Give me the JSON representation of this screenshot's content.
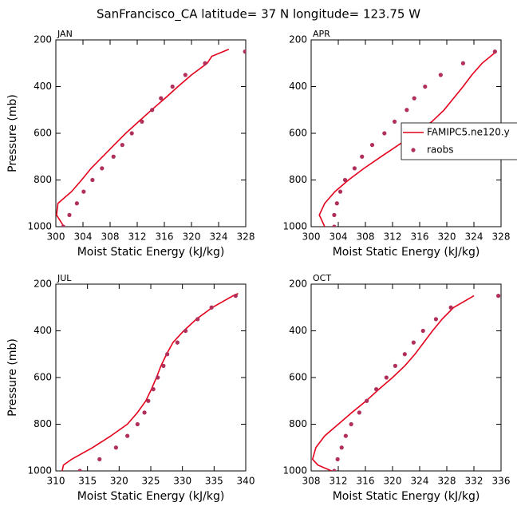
{
  "title": "SanFrancisco_CA  latitude= 37 N longitude= 123.75 W",
  "chart_data": [
    {
      "type": "line",
      "label": "JAN",
      "xlabel": "Moist Static Energy (kJ/kg)",
      "ylabel": "Pressure (mb)",
      "xlim": [
        300,
        328
      ],
      "xticks": [
        300,
        304,
        308,
        312,
        316,
        320,
        324,
        328
      ],
      "ylim": [
        1000,
        200
      ],
      "yticks": [
        200,
        400,
        600,
        800,
        1000
      ],
      "series": [
        {
          "style": "line",
          "color": "#e3001b",
          "x": [
            301.2,
            300.1,
            300.3,
            302.3,
            303.8,
            305.2,
            306.9,
            308.6,
            310.3,
            312.2,
            314.1,
            316.1,
            318.0,
            320.0,
            322.3,
            323.0,
            325.5
          ],
          "y": [
            1000,
            950,
            900,
            850,
            800,
            750,
            700,
            650,
            600,
            550,
            500,
            450,
            400,
            350,
            300,
            270,
            240
          ]
        },
        {
          "style": "markers",
          "color": "#b0305a",
          "x": [
            301.1,
            302.0,
            303.1,
            304.1,
            305.4,
            306.8,
            308.5,
            309.8,
            311.2,
            312.7,
            314.2,
            315.5,
            317.2,
            319.1,
            322.0,
            327.9
          ],
          "y": [
            1000,
            950,
            900,
            850,
            800,
            750,
            700,
            650,
            600,
            550,
            500,
            450,
            400,
            350,
            300,
            250
          ]
        }
      ]
    },
    {
      "type": "line",
      "label": "APR",
      "xlabel": "Moist Static Energy (kJ/kg)",
      "legend": "right",
      "xlim": [
        300,
        328
      ],
      "xticks": [
        300,
        304,
        308,
        312,
        316,
        320,
        324,
        328
      ],
      "ylim": [
        1000,
        200
      ],
      "yticks": [
        200,
        400,
        600,
        800,
        1000
      ],
      "series": [
        {
          "name": "FAMIPC5.ne120.y",
          "style": "line",
          "color": "#e3001b",
          "x": [
            302.0,
            301.2,
            302.0,
            303.5,
            305.5,
            307.8,
            310.3,
            312.9,
            315.4,
            317.8,
            319.6,
            321.0,
            322.4,
            323.7,
            325.2,
            327.3
          ],
          "y": [
            1000,
            950,
            900,
            850,
            800,
            750,
            700,
            650,
            600,
            550,
            500,
            450,
            400,
            350,
            300,
            250
          ]
        },
        {
          "name": "raobs",
          "style": "markers",
          "color": "#b0305a",
          "x": [
            303.4,
            303.4,
            303.8,
            304.3,
            305.0,
            306.4,
            307.5,
            309.0,
            310.8,
            312.3,
            314.1,
            315.2,
            316.8,
            319.1,
            322.4,
            327.1
          ],
          "y": [
            1000,
            950,
            900,
            850,
            800,
            750,
            700,
            650,
            600,
            550,
            500,
            450,
            400,
            350,
            300,
            250
          ]
        }
      ]
    },
    {
      "type": "line",
      "label": "JUL",
      "xlabel": "Moist Static Energy (kJ/kg)",
      "ylabel": "Pressure (mb)",
      "xlim": [
        310,
        340
      ],
      "xticks": [
        310,
        315,
        320,
        325,
        330,
        335,
        340
      ],
      "ylim": [
        1000,
        200
      ],
      "yticks": [
        200,
        400,
        600,
        800,
        1000
      ],
      "series": [
        {
          "style": "line",
          "color": "#e3001b",
          "x": [
            311.0,
            311.2,
            312.5,
            315.8,
            318.7,
            321.3,
            322.9,
            324.2,
            325.1,
            325.9,
            326.6,
            327.5,
            328.5,
            330.2,
            332.2,
            334.7,
            338.0,
            338.8
          ],
          "y": [
            1000,
            975,
            950,
            900,
            850,
            800,
            750,
            700,
            650,
            600,
            550,
            500,
            450,
            400,
            350,
            300,
            250,
            240
          ]
        },
        {
          "style": "markers",
          "color": "#b0305a",
          "x": [
            313.8,
            316.9,
            319.5,
            321.3,
            322.9,
            324.0,
            324.6,
            325.4,
            326.1,
            327.0,
            327.6,
            329.2,
            330.5,
            332.4,
            334.6,
            338.4
          ],
          "y": [
            1000,
            950,
            900,
            850,
            800,
            750,
            700,
            650,
            600,
            550,
            500,
            450,
            400,
            350,
            300,
            250
          ]
        }
      ]
    },
    {
      "type": "line",
      "label": "OCT",
      "xlabel": "Moist Static Energy (kJ/kg)",
      "xlim": [
        308,
        336
      ],
      "xticks": [
        308,
        312,
        316,
        320,
        324,
        328,
        332,
        336
      ],
      "ylim": [
        1000,
        200
      ],
      "yticks": [
        200,
        400,
        600,
        800,
        1000
      ],
      "series": [
        {
          "style": "line",
          "color": "#e3001b",
          "x": [
            311.0,
            309.0,
            308.2,
            308.7,
            310.0,
            312.0,
            314.0,
            316.1,
            318.0,
            320.0,
            321.8,
            323.3,
            324.6,
            325.9,
            327.3,
            329.0,
            332.0
          ],
          "y": [
            1000,
            975,
            950,
            900,
            850,
            800,
            750,
            700,
            650,
            600,
            550,
            500,
            450,
            400,
            350,
            300,
            250
          ]
        },
        {
          "style": "markers",
          "color": "#b0305a",
          "x": [
            311.4,
            311.9,
            312.5,
            313.1,
            313.9,
            315.1,
            316.2,
            317.6,
            319.1,
            320.4,
            321.8,
            323.1,
            324.5,
            326.4,
            328.6,
            335.6
          ],
          "y": [
            1000,
            950,
            900,
            850,
            800,
            750,
            700,
            650,
            600,
            550,
            500,
            450,
            400,
            350,
            300,
            250
          ]
        }
      ]
    }
  ]
}
